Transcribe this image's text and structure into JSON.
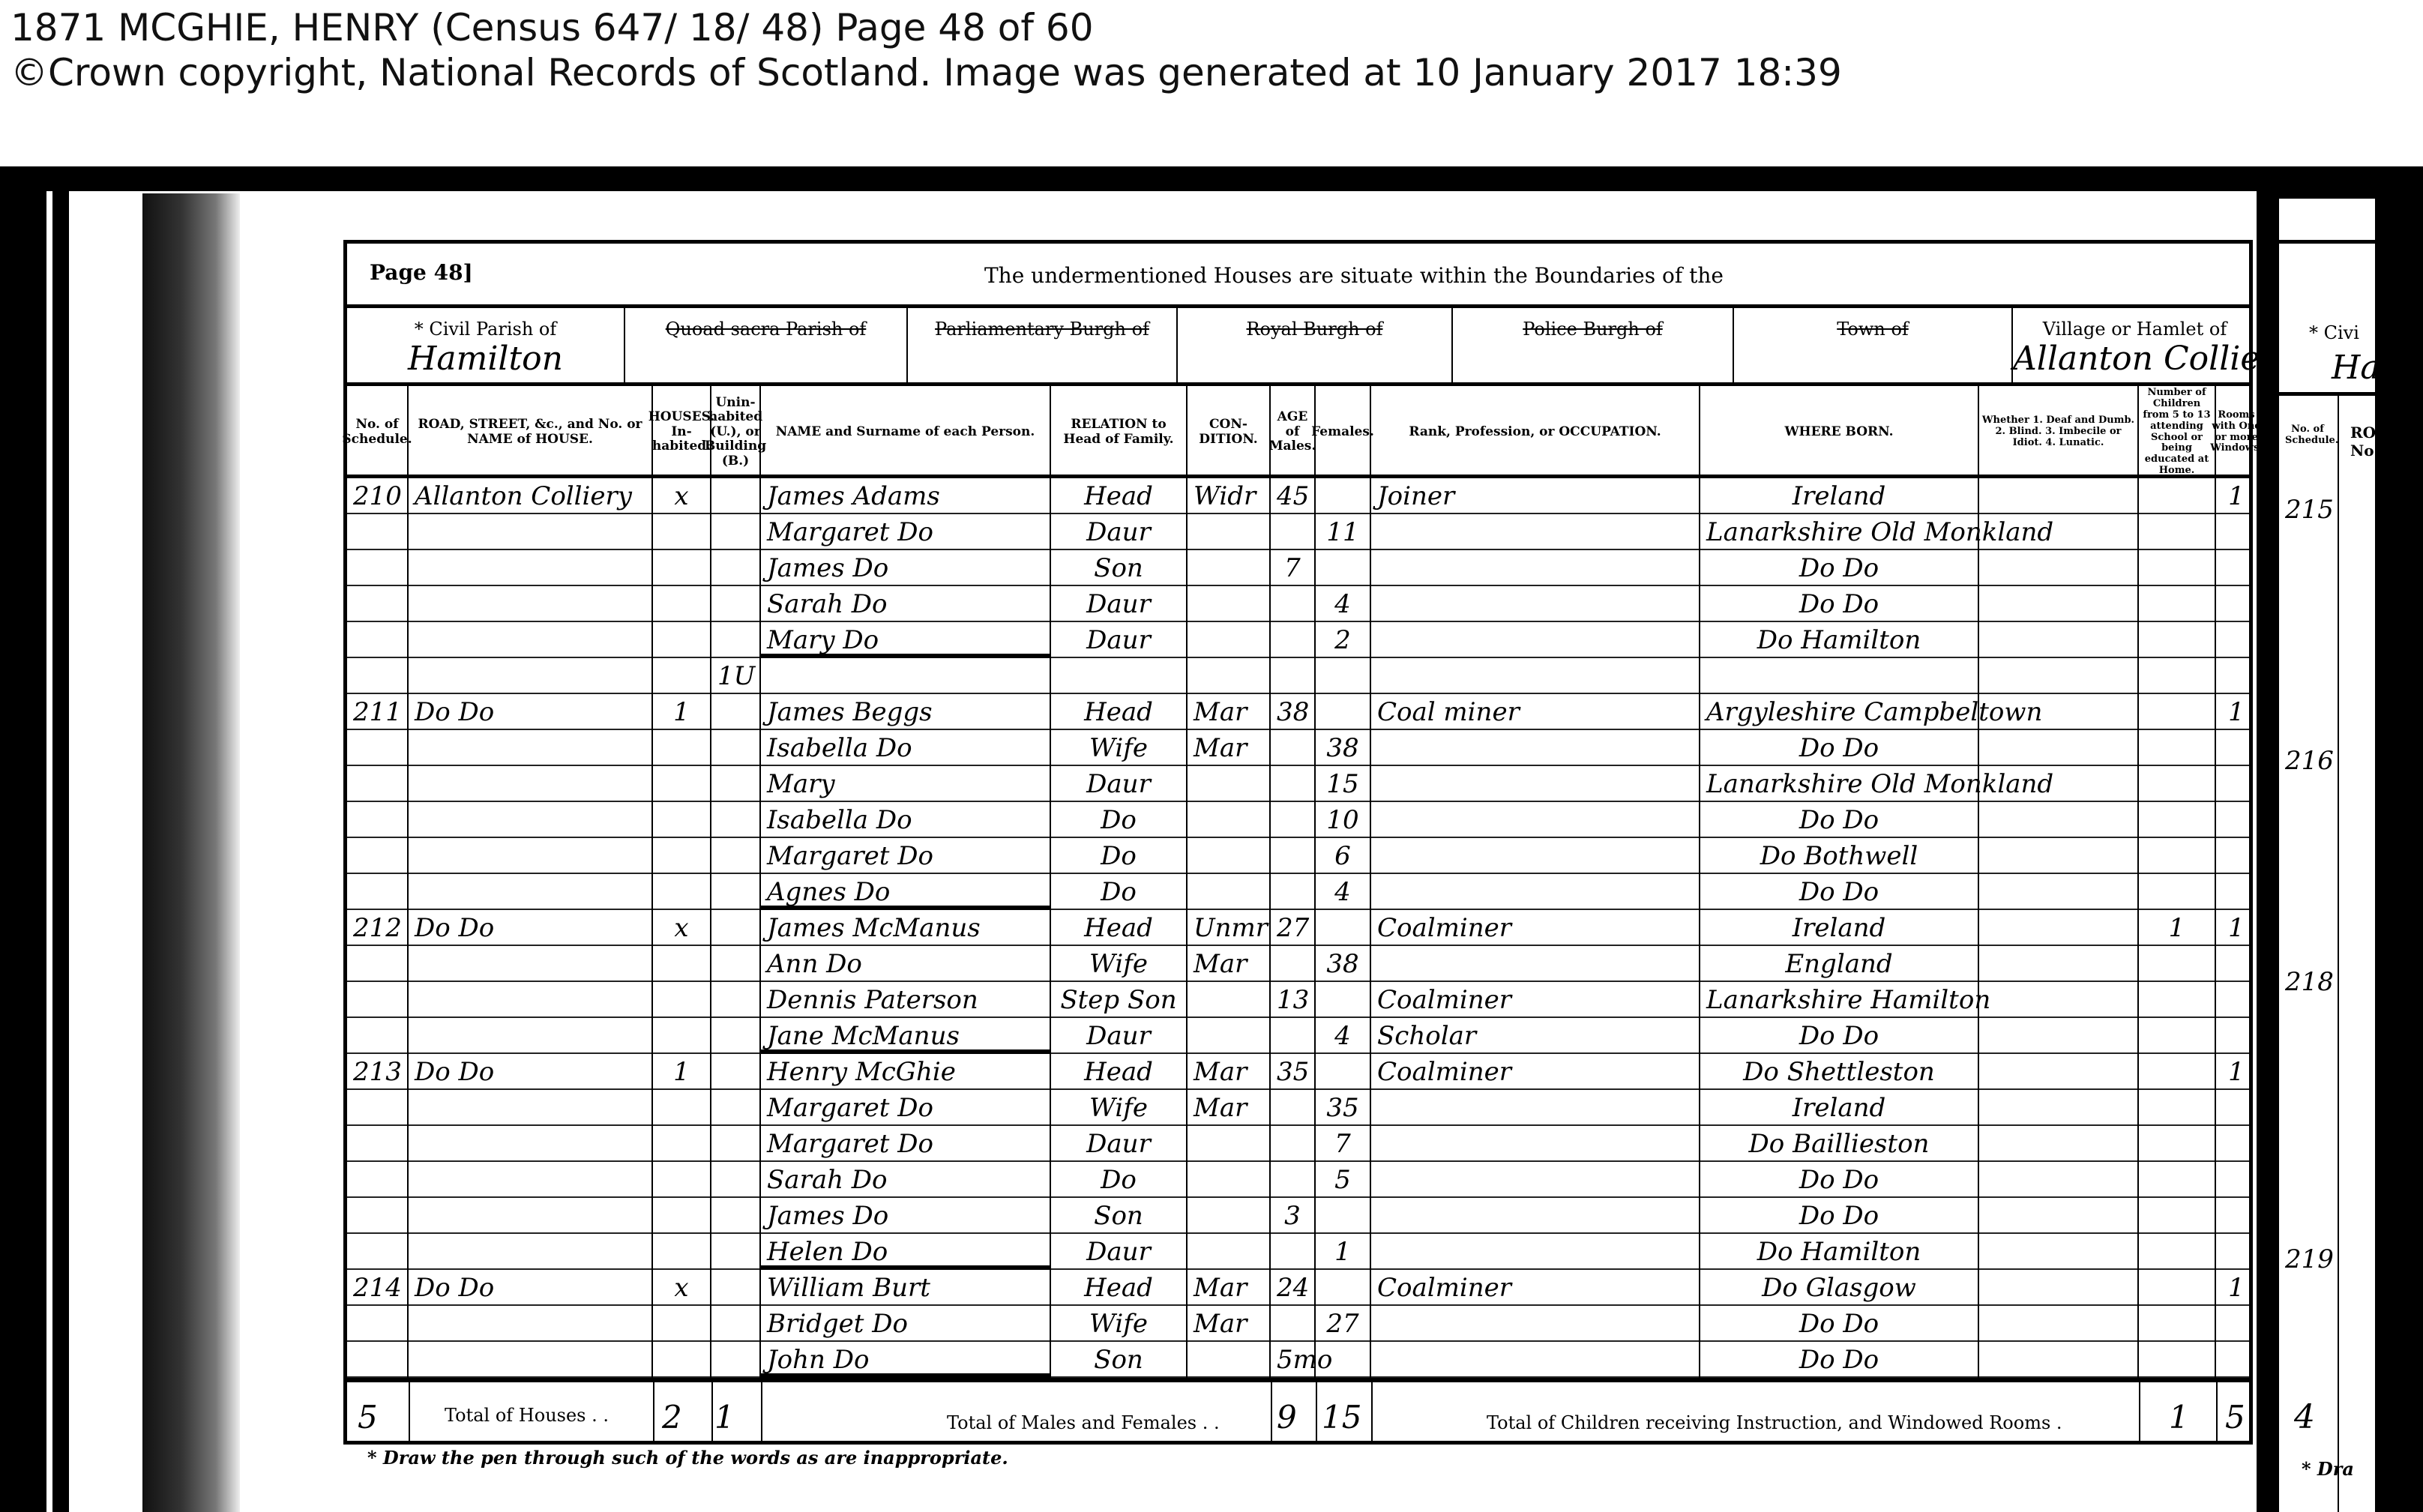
{
  "header": {
    "title": "1871 MCGHIE, HENRY (Census 647/ 18/ 48) Page 48 of 60",
    "copyright": "©Crown copyright, National Records of Scotland. Image was generated at  10 January 2017 18:39"
  },
  "form": {
    "page_label": "Page 48]",
    "boundaries_heading": "The undermentioned Houses are situate within the Boundaries of the",
    "areas": [
      {
        "label": "* Civil Parish of",
        "value": "Hamilton",
        "struck": false
      },
      {
        "label": "Quoad sacra Parish of",
        "value": "",
        "struck": true
      },
      {
        "label": "Parliamentary Burgh of",
        "value": "",
        "struck": true
      },
      {
        "label": "Royal Burgh of",
        "value": "",
        "struck": true
      },
      {
        "label": "Police Burgh of",
        "value": "",
        "struck": true
      },
      {
        "label": "Town of",
        "value": "",
        "struck": true
      },
      {
        "label": "Village or Hamlet of",
        "value": "Allanton Colliery",
        "struck": false
      }
    ],
    "columns": [
      "No. of Schedule.",
      "ROAD, STREET, &c., and No. or NAME of HOUSE.",
      "HOUSES. In-habited.",
      "Unin-habited (U.), or Building (B.)",
      "NAME and Surname of each Person.",
      "RELATION to Head of Family.",
      "CON-DITION.",
      "AGE of Males.",
      "Females.",
      "Rank, Profession, or OCCUPATION.",
      "WHERE BORN.",
      "Whether 1. Deaf and Dumb. 2. Blind. 3. Imbecile or Idiot. 4. Lunatic.",
      "Number of Children from 5 to 13 attending School or being educated at Home.",
      "Rooms with One or more Windows."
    ],
    "rows": [
      {
        "sched": "210",
        "road": "Allanton Colliery",
        "inh": "x",
        "uninh": "",
        "name": "James Adams",
        "rel": "Head",
        "cond": "Widr",
        "m": "45",
        "f": "",
        "occ": "Joiner",
        "born": "Ireland",
        "inf": "",
        "child": "",
        "rooms": "1"
      },
      {
        "sched": "",
        "road": "",
        "inh": "",
        "uninh": "",
        "name": "Margaret Do",
        "rel": "Daur",
        "cond": "",
        "m": "",
        "f": "11",
        "occ": "",
        "born": "Lanarkshire Old Monkland",
        "inf": "",
        "child": "",
        "rooms": ""
      },
      {
        "sched": "",
        "road": "",
        "inh": "",
        "uninh": "",
        "name": "James Do",
        "rel": "Son",
        "cond": "",
        "m": "7",
        "f": "",
        "occ": "",
        "born": "Do Do",
        "inf": "",
        "child": "",
        "rooms": ""
      },
      {
        "sched": "",
        "road": "",
        "inh": "",
        "uninh": "",
        "name": "Sarah Do",
        "rel": "Daur",
        "cond": "",
        "m": "",
        "f": "4",
        "occ": "",
        "born": "Do Do",
        "inf": "",
        "child": "",
        "rooms": ""
      },
      {
        "sched": "",
        "road": "",
        "inh": "",
        "uninh": "",
        "name": "Mary Do",
        "rel": "Daur",
        "cond": "",
        "m": "",
        "f": "2",
        "occ": "",
        "born": "Do Hamilton",
        "inf": "",
        "child": "",
        "rooms": "",
        "end": true
      },
      {
        "sched": "",
        "road": "",
        "inh": "",
        "uninh": "1U",
        "name": "",
        "rel": "",
        "cond": "",
        "m": "",
        "f": "",
        "occ": "",
        "born": "",
        "inf": "",
        "child": "",
        "rooms": ""
      },
      {
        "sched": "211",
        "road": "Do   Do",
        "inh": "1",
        "uninh": "",
        "name": "James Beggs",
        "rel": "Head",
        "cond": "Mar",
        "m": "38",
        "f": "",
        "occ": "Coal miner",
        "born": "Argyleshire Campbeltown",
        "inf": "",
        "child": "",
        "rooms": "1"
      },
      {
        "sched": "",
        "road": "",
        "inh": "",
        "uninh": "",
        "name": "Isabella Do",
        "rel": "Wife",
        "cond": "Mar",
        "m": "",
        "f": "38",
        "occ": "",
        "born": "Do Do",
        "inf": "",
        "child": "",
        "rooms": ""
      },
      {
        "sched": "",
        "road": "",
        "inh": "",
        "uninh": "",
        "name": "Mary",
        "rel": "Daur",
        "cond": "",
        "m": "",
        "f": "15",
        "occ": "",
        "born": "Lanarkshire Old Monkland",
        "inf": "",
        "child": "",
        "rooms": ""
      },
      {
        "sched": "",
        "road": "",
        "inh": "",
        "uninh": "",
        "name": "Isabella Do",
        "rel": "Do",
        "cond": "",
        "m": "",
        "f": "10",
        "occ": "",
        "born": "Do Do",
        "inf": "",
        "child": "",
        "rooms": ""
      },
      {
        "sched": "",
        "road": "",
        "inh": "",
        "uninh": "",
        "name": "Margaret Do",
        "rel": "Do",
        "cond": "",
        "m": "",
        "f": "6",
        "occ": "",
        "born": "Do Bothwell",
        "inf": "",
        "child": "",
        "rooms": ""
      },
      {
        "sched": "",
        "road": "",
        "inh": "",
        "uninh": "",
        "name": "Agnes Do",
        "rel": "Do",
        "cond": "",
        "m": "",
        "f": "4",
        "occ": "",
        "born": "Do Do",
        "inf": "",
        "child": "",
        "rooms": "",
        "end": true
      },
      {
        "sched": "212",
        "road": "Do   Do",
        "inh": "x",
        "uninh": "",
        "name": "James McManus",
        "rel": "Head",
        "cond": "Unmr",
        "m": "27",
        "f": "",
        "occ": "Coalminer",
        "born": "Ireland",
        "inf": "",
        "child": "1",
        "rooms": "1"
      },
      {
        "sched": "",
        "road": "",
        "inh": "",
        "uninh": "",
        "name": "Ann Do",
        "rel": "Wife",
        "cond": "Mar",
        "m": "",
        "f": "38",
        "occ": "",
        "born": "England",
        "inf": "",
        "child": "",
        "rooms": ""
      },
      {
        "sched": "",
        "road": "",
        "inh": "",
        "uninh": "",
        "name": "Dennis Paterson",
        "rel": "Step Son",
        "cond": "",
        "m": "13",
        "f": "",
        "occ": "Coalminer",
        "born": "Lanarkshire Hamilton",
        "inf": "",
        "child": "",
        "rooms": ""
      },
      {
        "sched": "",
        "road": "",
        "inh": "",
        "uninh": "",
        "name": "Jane McManus",
        "rel": "Daur",
        "cond": "",
        "m": "",
        "f": "4",
        "occ": "Scholar",
        "born": "Do Do",
        "inf": "",
        "child": "",
        "rooms": "",
        "end": true
      },
      {
        "sched": "213",
        "road": "Do   Do",
        "inh": "1",
        "uninh": "",
        "name": "Henry McGhie",
        "rel": "Head",
        "cond": "Mar",
        "m": "35",
        "f": "",
        "occ": "Coalminer",
        "born": "Do Shettleston",
        "inf": "",
        "child": "",
        "rooms": "1"
      },
      {
        "sched": "",
        "road": "",
        "inh": "",
        "uninh": "",
        "name": "Margaret Do",
        "rel": "Wife",
        "cond": "Mar",
        "m": "",
        "f": "35",
        "occ": "",
        "born": "Ireland",
        "inf": "",
        "child": "",
        "rooms": ""
      },
      {
        "sched": "",
        "road": "",
        "inh": "",
        "uninh": "",
        "name": "Margaret Do",
        "rel": "Daur",
        "cond": "",
        "m": "",
        "f": "7",
        "occ": "",
        "born": "Do Baillieston",
        "inf": "",
        "child": "",
        "rooms": ""
      },
      {
        "sched": "",
        "road": "",
        "inh": "",
        "uninh": "",
        "name": "Sarah Do",
        "rel": "Do",
        "cond": "",
        "m": "",
        "f": "5",
        "occ": "",
        "born": "Do Do",
        "inf": "",
        "child": "",
        "rooms": ""
      },
      {
        "sched": "",
        "road": "",
        "inh": "",
        "uninh": "",
        "name": "James Do",
        "rel": "Son",
        "cond": "",
        "m": "3",
        "f": "",
        "occ": "",
        "born": "Do Do",
        "inf": "",
        "child": "",
        "rooms": ""
      },
      {
        "sched": "",
        "road": "",
        "inh": "",
        "uninh": "",
        "name": "Helen Do",
        "rel": "Daur",
        "cond": "",
        "m": "",
        "f": "1",
        "occ": "",
        "born": "Do Hamilton",
        "inf": "",
        "child": "",
        "rooms": "",
        "end": true
      },
      {
        "sched": "214",
        "road": "Do   Do",
        "inh": "x",
        "uninh": "",
        "name": "William Burt",
        "rel": "Head",
        "cond": "Mar",
        "m": "24",
        "f": "",
        "occ": "Coalminer",
        "born": "Do Glasgow",
        "inf": "",
        "child": "",
        "rooms": "1"
      },
      {
        "sched": "",
        "road": "",
        "inh": "",
        "uninh": "",
        "name": "Bridget Do",
        "rel": "Wife",
        "cond": "Mar",
        "m": "",
        "f": "27",
        "occ": "",
        "born": "Do Do",
        "inf": "",
        "child": "",
        "rooms": ""
      },
      {
        "sched": "",
        "road": "",
        "inh": "",
        "uninh": "",
        "name": "John Do",
        "rel": "Son",
        "cond": "",
        "m": "5mo",
        "f": "",
        "occ": "",
        "born": "Do Do",
        "inf": "",
        "child": "",
        "rooms": "",
        "end": true
      }
    ],
    "totals": {
      "schedules": "5",
      "houses_label": "Total of Houses . .",
      "houses_inhabited": "2",
      "houses_uninhabited": "1",
      "persons_label": "Total of Males and Females . .",
      "males": "9",
      "females": "15",
      "children_label": "Total of Children receiving Instruction, and Windowed Rooms .",
      "children": "1",
      "rooms": "5"
    },
    "footnote": "* Draw the pen through such of the words as are inappropriate."
  },
  "next_page": {
    "civil": "* Civi",
    "parish": "Ha",
    "col_no": "No. of Schedule.",
    "col_road": "RO No",
    "schedules": [
      "215",
      "216",
      "218",
      "219"
    ],
    "total": "4",
    "footnote": "* Dra"
  }
}
